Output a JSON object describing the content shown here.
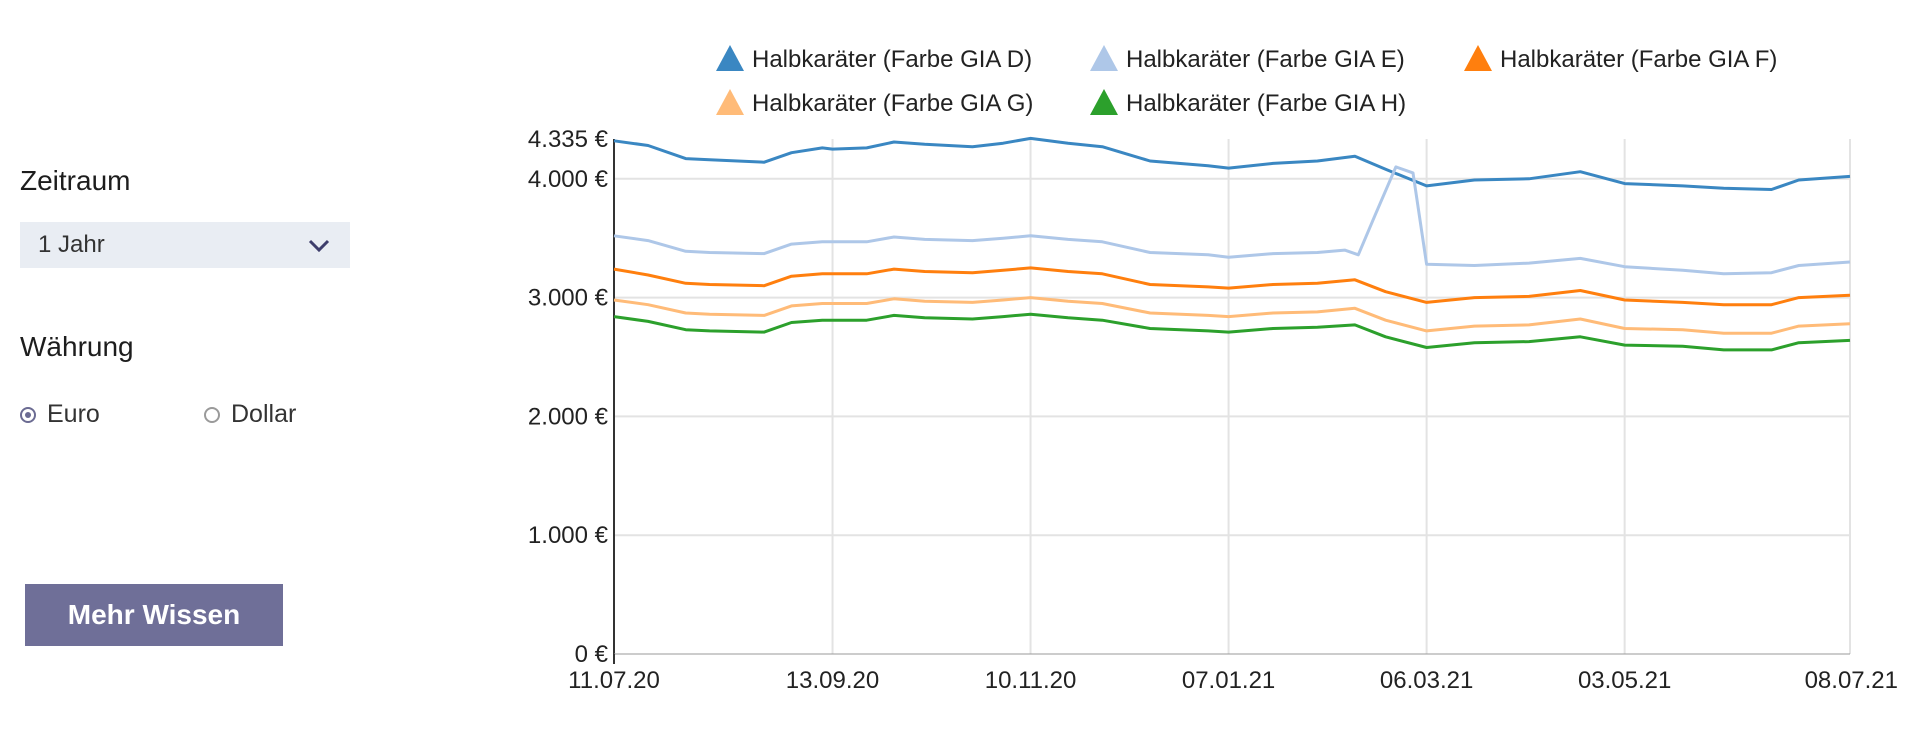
{
  "controls": {
    "period_label": "Zeitraum",
    "period_value": "1 Jahr",
    "currency_label": "Währung",
    "currency_options": [
      "Euro",
      "Dollar"
    ],
    "currency_selected": "Euro",
    "more_button": "Mehr Wissen"
  },
  "chart_data": {
    "type": "line",
    "title": "",
    "xlabel": "",
    "ylabel": "",
    "x_range": [
      "11.07.20",
      "08.07.21"
    ],
    "x_ticks": [
      "11.07.20",
      "13.09.20",
      "10.11.20",
      "07.01.21",
      "06.03.21",
      "03.05.21",
      "08.07.21"
    ],
    "y_ticks": [
      {
        "value": 0,
        "label": "0 €"
      },
      {
        "value": 1000,
        "label": "1.000 €"
      },
      {
        "value": 2000,
        "label": "2.000 €"
      },
      {
        "value": 3000,
        "label": "3.000 €"
      },
      {
        "value": 4000,
        "label": "4.000 €"
      },
      {
        "value": 4335,
        "label": "4.335 €"
      }
    ],
    "ylim": [
      0,
      4335
    ],
    "grid": true,
    "legend_position": "top",
    "series": [
      {
        "name": "Halbkaräter (Farbe GIA D)",
        "color": "#3a87c2",
        "x": [
          "11.07.20",
          "21.07.20",
          "01.08.20",
          "08.08.20",
          "24.08.20",
          "01.09.20",
          "10.09.20",
          "13.09.20",
          "23.09.20",
          "01.10.20",
          "10.10.20",
          "24.10.20",
          "02.11.20",
          "10.11.20",
          "21.11.20",
          "01.12.20",
          "15.12.20",
          "01.01.21",
          "07.01.21",
          "20.01.21",
          "02.02.21",
          "13.02.21",
          "22.02.21",
          "06.03.21",
          "20.03.21",
          "05.04.21",
          "20.04.21",
          "03.05.21",
          "20.05.21",
          "01.06.21",
          "15.06.21",
          "23.06.21",
          "08.07.21"
        ],
        "values": [
          4320,
          4280,
          4170,
          4160,
          4140,
          4220,
          4260,
          4250,
          4260,
          4310,
          4290,
          4270,
          4300,
          4340,
          4300,
          4270,
          4150,
          4110,
          4090,
          4130,
          4150,
          4190,
          4080,
          3940,
          3990,
          4000,
          4060,
          3960,
          3940,
          3920,
          3910,
          3990,
          4020
        ]
      },
      {
        "name": "Halbkaräter (Farbe GIA E)",
        "color": "#aec7e8",
        "x": [
          "11.07.20",
          "21.07.20",
          "01.08.20",
          "08.08.20",
          "24.08.20",
          "01.09.20",
          "10.09.20",
          "13.09.20",
          "23.09.20",
          "01.10.20",
          "10.10.20",
          "24.10.20",
          "02.11.20",
          "10.11.20",
          "21.11.20",
          "01.12.20",
          "15.12.20",
          "01.01.21",
          "07.01.21",
          "20.01.21",
          "02.02.21",
          "10.02.21",
          "14.02.21",
          "19.02.21",
          "25.02.21",
          "02.03.21",
          "06.03.21",
          "20.03.21",
          "05.04.21",
          "20.04.21",
          "03.05.21",
          "20.05.21",
          "01.06.21",
          "15.06.21",
          "23.06.21",
          "08.07.21"
        ],
        "values": [
          3520,
          3480,
          3390,
          3380,
          3370,
          3450,
          3470,
          3470,
          3470,
          3510,
          3490,
          3480,
          3500,
          3520,
          3490,
          3470,
          3380,
          3360,
          3340,
          3370,
          3380,
          3400,
          3360,
          3700,
          4100,
          4050,
          3280,
          3270,
          3290,
          3330,
          3260,
          3230,
          3200,
          3210,
          3270,
          3300
        ]
      },
      {
        "name": "Halbkaräter (Farbe GIA F)",
        "color": "#ff7f0e",
        "x": [
          "11.07.20",
          "21.07.20",
          "01.08.20",
          "08.08.20",
          "24.08.20",
          "01.09.20",
          "10.09.20",
          "13.09.20",
          "23.09.20",
          "01.10.20",
          "10.10.20",
          "24.10.20",
          "02.11.20",
          "10.11.20",
          "21.11.20",
          "01.12.20",
          "15.12.20",
          "01.01.21",
          "07.01.21",
          "20.01.21",
          "02.02.21",
          "13.02.21",
          "22.02.21",
          "06.03.21",
          "20.03.21",
          "05.04.21",
          "20.04.21",
          "03.05.21",
          "20.05.21",
          "01.06.21",
          "15.06.21",
          "23.06.21",
          "08.07.21"
        ],
        "values": [
          3240,
          3190,
          3120,
          3110,
          3100,
          3180,
          3200,
          3200,
          3200,
          3240,
          3220,
          3210,
          3230,
          3250,
          3220,
          3200,
          3110,
          3090,
          3080,
          3110,
          3120,
          3150,
          3050,
          2960,
          3000,
          3010,
          3060,
          2980,
          2960,
          2940,
          2940,
          3000,
          3020
        ]
      },
      {
        "name": "Halbkaräter (Farbe GIA G)",
        "color": "#ffbb78",
        "x": [
          "11.07.20",
          "21.07.20",
          "01.08.20",
          "08.08.20",
          "24.08.20",
          "01.09.20",
          "10.09.20",
          "13.09.20",
          "23.09.20",
          "01.10.20",
          "10.10.20",
          "24.10.20",
          "02.11.20",
          "10.11.20",
          "21.11.20",
          "01.12.20",
          "15.12.20",
          "01.01.21",
          "07.01.21",
          "20.01.21",
          "02.02.21",
          "13.02.21",
          "22.02.21",
          "06.03.21",
          "20.03.21",
          "05.04.21",
          "20.04.21",
          "03.05.21",
          "20.05.21",
          "01.06.21",
          "15.06.21",
          "23.06.21",
          "08.07.21"
        ],
        "values": [
          2980,
          2940,
          2870,
          2860,
          2850,
          2930,
          2950,
          2950,
          2950,
          2990,
          2970,
          2960,
          2980,
          3000,
          2970,
          2950,
          2870,
          2850,
          2840,
          2870,
          2880,
          2910,
          2810,
          2720,
          2760,
          2770,
          2820,
          2740,
          2730,
          2700,
          2700,
          2760,
          2780
        ]
      },
      {
        "name": "Halbkaräter (Farbe GIA H)",
        "color": "#2ca02c",
        "x": [
          "11.07.20",
          "21.07.20",
          "01.08.20",
          "08.08.20",
          "24.08.20",
          "01.09.20",
          "10.09.20",
          "13.09.20",
          "23.09.20",
          "01.10.20",
          "10.10.20",
          "24.10.20",
          "02.11.20",
          "10.11.20",
          "21.11.20",
          "01.12.20",
          "15.12.20",
          "01.01.21",
          "07.01.21",
          "20.01.21",
          "02.02.21",
          "13.02.21",
          "22.02.21",
          "06.03.21",
          "20.03.21",
          "05.04.21",
          "20.04.21",
          "03.05.21",
          "20.05.21",
          "01.06.21",
          "15.06.21",
          "23.06.21",
          "08.07.21"
        ],
        "values": [
          2840,
          2800,
          2730,
          2720,
          2710,
          2790,
          2810,
          2810,
          2810,
          2850,
          2830,
          2820,
          2840,
          2860,
          2830,
          2810,
          2740,
          2720,
          2710,
          2740,
          2750,
          2770,
          2670,
          2580,
          2620,
          2630,
          2670,
          2600,
          2590,
          2560,
          2560,
          2620,
          2640
        ]
      }
    ]
  }
}
